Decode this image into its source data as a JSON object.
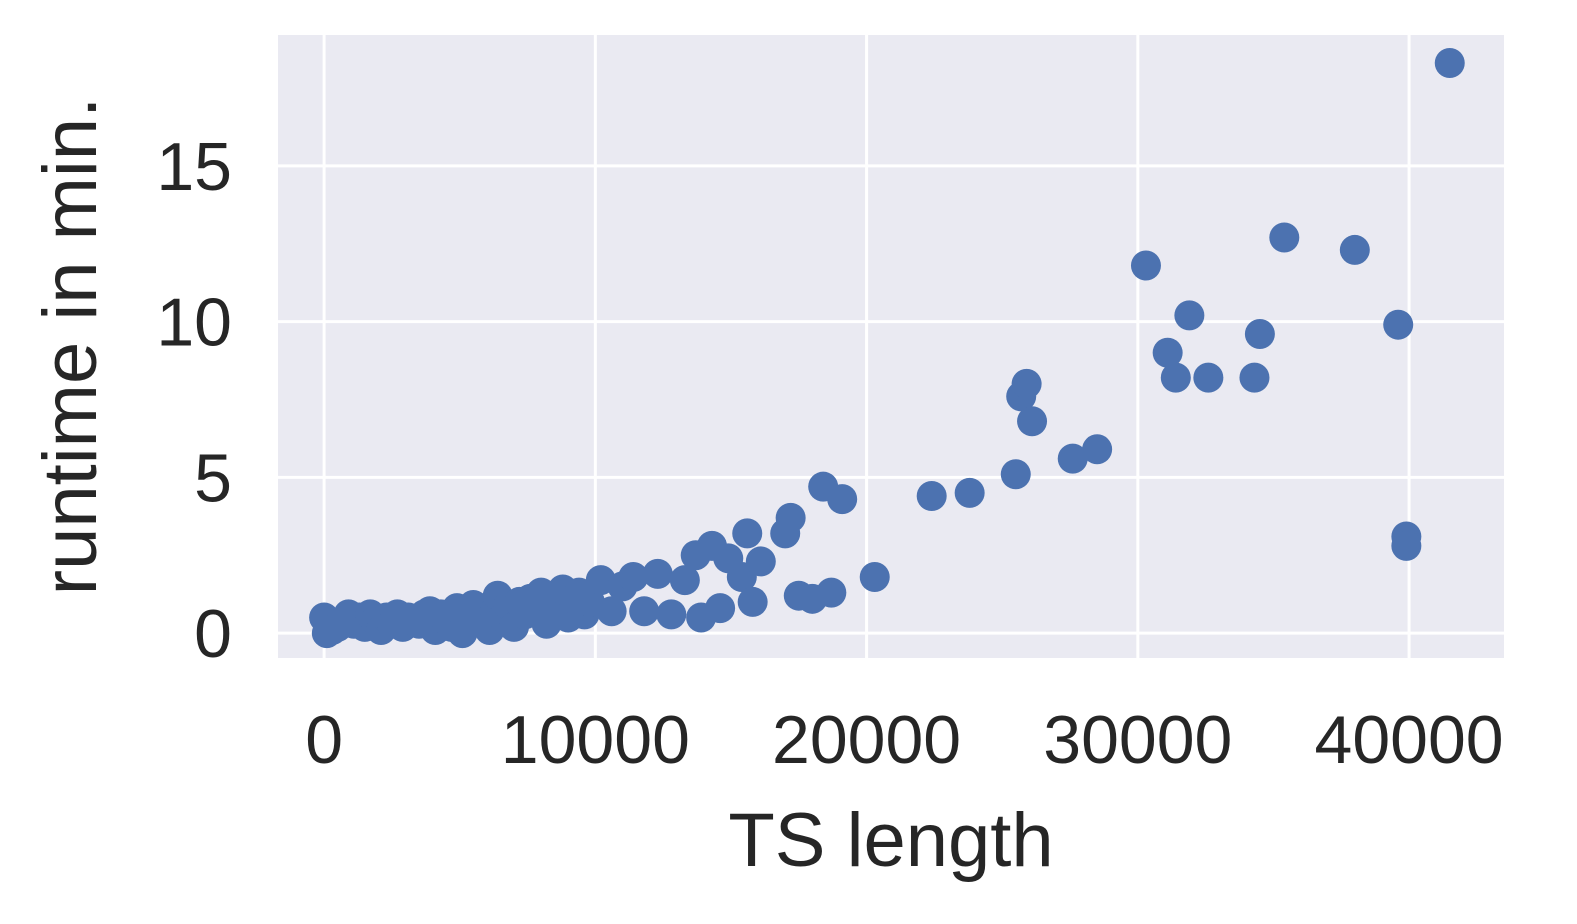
{
  "chart_data": {
    "type": "scatter",
    "title": "",
    "xlabel": "TS length",
    "ylabel": "runtime in min.",
    "xlim": [
      -1700,
      43500
    ],
    "ylim": [
      -0.8,
      19.2
    ],
    "xticks": [
      0,
      10000,
      20000,
      30000,
      40000
    ],
    "yticks": [
      0,
      5,
      10,
      15
    ],
    "grid": true,
    "background": "#eaeaf2",
    "grid_color": "#ffffff",
    "point_color": "#4c72b0",
    "points": [
      [
        0,
        0.5
      ],
      [
        100,
        0.0
      ],
      [
        300,
        0.1
      ],
      [
        500,
        0.2
      ],
      [
        700,
        0.4
      ],
      [
        900,
        0.6
      ],
      [
        1100,
        0.3
      ],
      [
        1300,
        0.5
      ],
      [
        1500,
        0.2
      ],
      [
        1700,
        0.6
      ],
      [
        1900,
        0.4
      ],
      [
        2100,
        0.1
      ],
      [
        2300,
        0.5
      ],
      [
        2500,
        0.3
      ],
      [
        2700,
        0.6
      ],
      [
        2900,
        0.2
      ],
      [
        3100,
        0.5
      ],
      [
        3300,
        0.4
      ],
      [
        3500,
        0.3
      ],
      [
        3700,
        0.6
      ],
      [
        3900,
        0.7
      ],
      [
        4100,
        0.1
      ],
      [
        4300,
        0.6
      ],
      [
        4500,
        0.4
      ],
      [
        4700,
        0.2
      ],
      [
        4900,
        0.8
      ],
      [
        5100,
        0.0
      ],
      [
        5300,
        0.6
      ],
      [
        5500,
        0.9
      ],
      [
        5700,
        0.4
      ],
      [
        5900,
        0.8
      ],
      [
        6100,
        0.1
      ],
      [
        6300,
        0.7
      ],
      [
        6400,
        1.2
      ],
      [
        6600,
        0.5
      ],
      [
        6800,
        0.9
      ],
      [
        7000,
        0.2
      ],
      [
        7200,
        1.0
      ],
      [
        7400,
        0.6
      ],
      [
        7600,
        1.1
      ],
      [
        7800,
        0.7
      ],
      [
        8000,
        1.3
      ],
      [
        8200,
        0.3
      ],
      [
        8400,
        1.2
      ],
      [
        8600,
        0.9
      ],
      [
        8800,
        1.4
      ],
      [
        9000,
        0.5
      ],
      [
        9200,
        1.1
      ],
      [
        9400,
        1.3
      ],
      [
        9600,
        0.6
      ],
      [
        9800,
        1.0
      ],
      [
        10200,
        1.7
      ],
      [
        10600,
        0.7
      ],
      [
        11000,
        1.5
      ],
      [
        11400,
        1.8
      ],
      [
        11800,
        0.7
      ],
      [
        12300,
        1.9
      ],
      [
        12800,
        0.6
      ],
      [
        13300,
        1.7
      ],
      [
        13700,
        2.5
      ],
      [
        13900,
        0.5
      ],
      [
        14300,
        2.8
      ],
      [
        14600,
        0.8
      ],
      [
        14900,
        2.4
      ],
      [
        15400,
        1.8
      ],
      [
        15600,
        3.2
      ],
      [
        15800,
        1.0
      ],
      [
        16100,
        2.3
      ],
      [
        17000,
        3.2
      ],
      [
        17200,
        3.7
      ],
      [
        17500,
        1.2
      ],
      [
        18000,
        1.1
      ],
      [
        18400,
        4.7
      ],
      [
        18700,
        1.3
      ],
      [
        19100,
        4.3
      ],
      [
        20300,
        1.8
      ],
      [
        22400,
        4.4
      ],
      [
        23800,
        4.5
      ],
      [
        25500,
        5.1
      ],
      [
        25700,
        7.6
      ],
      [
        25900,
        8.0
      ],
      [
        26100,
        6.8
      ],
      [
        27600,
        5.6
      ],
      [
        28500,
        5.9
      ],
      [
        30300,
        11.8
      ],
      [
        31100,
        9.0
      ],
      [
        31400,
        8.2
      ],
      [
        31900,
        10.2
      ],
      [
        32600,
        8.2
      ],
      [
        34300,
        8.2
      ],
      [
        34500,
        9.6
      ],
      [
        35400,
        12.7
      ],
      [
        38000,
        12.3
      ],
      [
        39600,
        9.9
      ],
      [
        39900,
        3.1
      ],
      [
        39900,
        2.8
      ],
      [
        41500,
        18.3
      ]
    ]
  }
}
